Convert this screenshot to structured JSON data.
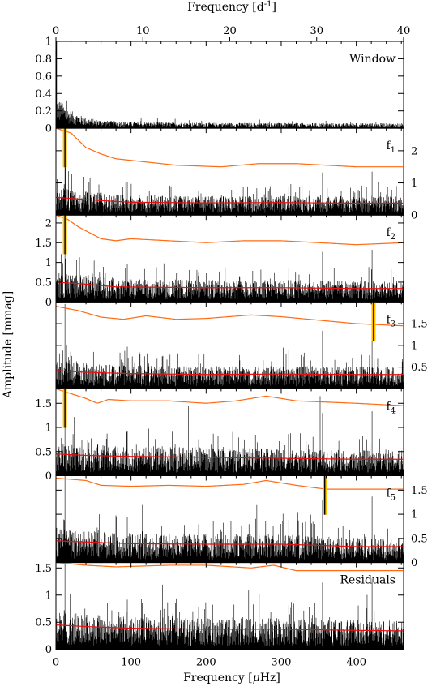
{
  "chart_data": {
    "type": "line",
    "top_axis": {
      "label_prefix": "Frequency [d",
      "label_sup": "-1",
      "label_suffix": "]",
      "range": [
        0,
        40
      ],
      "ticks": [
        "0",
        "10",
        "20",
        "30",
        "40"
      ]
    },
    "bottom_axis": {
      "label_prefix": "Frequency [",
      "label_mu": "μ",
      "label_suffix": "Hz]",
      "range": [
        0,
        463
      ],
      "ticks": [
        "0",
        "100",
        "200",
        "300",
        "400"
      ]
    },
    "ylabel": "Amplitude [mmag]",
    "colors": {
      "spectrum": "#000000",
      "threshold": "#ff6a13",
      "noise": "#e8100f",
      "highlight": "#ffbe00"
    },
    "panels": [
      {
        "name": "Window",
        "label": "Window",
        "sub": "",
        "ylim": [
          0,
          1.0
        ],
        "yaxis": "left",
        "yticks": [
          "0",
          "0.2",
          "0.4",
          "0.6",
          "0.8",
          "1"
        ],
        "noise": [],
        "threshold": [],
        "highlight_freq": null
      },
      {
        "name": "f1",
        "label": "f",
        "sub": "1",
        "ylim": [
          0,
          2.7
        ],
        "yaxis": "right",
        "yticks": [
          "0",
          "1",
          "2"
        ],
        "noise": [
          [
            0,
            0.55
          ],
          [
            30,
            0.5
          ],
          [
            60,
            0.45
          ],
          [
            100,
            0.4
          ],
          [
            200,
            0.38
          ],
          [
            300,
            0.39
          ],
          [
            400,
            0.37
          ],
          [
            463,
            0.37
          ]
        ],
        "threshold": [
          [
            0,
            2.7
          ],
          [
            20,
            2.55
          ],
          [
            40,
            2.1
          ],
          [
            60,
            1.9
          ],
          [
            80,
            1.75
          ],
          [
            120,
            1.65
          ],
          [
            160,
            1.55
          ],
          [
            220,
            1.5
          ],
          [
            270,
            1.6
          ],
          [
            320,
            1.6
          ],
          [
            360,
            1.55
          ],
          [
            400,
            1.5
          ],
          [
            463,
            1.5
          ]
        ],
        "highlight_freq": 12
      },
      {
        "name": "f2",
        "label": "f",
        "sub": "2",
        "ylim": [
          0,
          2.2
        ],
        "yaxis": "left",
        "yticks": [
          "0",
          "0.5",
          "1",
          "1.5",
          "2"
        ],
        "noise": [
          [
            0,
            0.5
          ],
          [
            40,
            0.45
          ],
          [
            80,
            0.38
          ],
          [
            200,
            0.36
          ],
          [
            300,
            0.36
          ],
          [
            400,
            0.34
          ],
          [
            463,
            0.34
          ]
        ],
        "threshold": [
          [
            0,
            2.2
          ],
          [
            15,
            2.1
          ],
          [
            30,
            1.9
          ],
          [
            60,
            1.6
          ],
          [
            80,
            1.55
          ],
          [
            100,
            1.6
          ],
          [
            150,
            1.55
          ],
          [
            200,
            1.5
          ],
          [
            250,
            1.55
          ],
          [
            300,
            1.55
          ],
          [
            350,
            1.5
          ],
          [
            400,
            1.45
          ],
          [
            463,
            1.5
          ]
        ],
        "highlight_freq": 12
      },
      {
        "name": "f3",
        "label": "f",
        "sub": "3",
        "ylim": [
          0,
          2.0
        ],
        "yaxis": "right",
        "yticks": [
          "0.5",
          "1",
          "1.5"
        ],
        "noise": [
          [
            0,
            0.42
          ],
          [
            40,
            0.38
          ],
          [
            100,
            0.35
          ],
          [
            200,
            0.33
          ],
          [
            300,
            0.34
          ],
          [
            400,
            0.33
          ],
          [
            463,
            0.33
          ]
        ],
        "threshold": [
          [
            0,
            1.9
          ],
          [
            30,
            1.8
          ],
          [
            60,
            1.65
          ],
          [
            90,
            1.6
          ],
          [
            120,
            1.68
          ],
          [
            160,
            1.6
          ],
          [
            200,
            1.62
          ],
          [
            260,
            1.7
          ],
          [
            300,
            1.66
          ],
          [
            350,
            1.58
          ],
          [
            400,
            1.5
          ],
          [
            463,
            1.45
          ]
        ],
        "highlight_freq": 423
      },
      {
        "name": "f4",
        "label": "f",
        "sub": "4",
        "ylim": [
          0,
          1.8
        ],
        "yaxis": "left",
        "yticks": [
          "0",
          "0.5",
          "1",
          "1.5"
        ],
        "noise": [
          [
            0,
            0.45
          ],
          [
            40,
            0.42
          ],
          [
            100,
            0.4
          ],
          [
            200,
            0.38
          ],
          [
            300,
            0.36
          ],
          [
            400,
            0.34
          ],
          [
            463,
            0.34
          ]
        ],
        "threshold": [
          [
            0,
            1.8
          ],
          [
            20,
            1.7
          ],
          [
            40,
            1.6
          ],
          [
            55,
            1.5
          ],
          [
            70,
            1.58
          ],
          [
            100,
            1.55
          ],
          [
            150,
            1.55
          ],
          [
            200,
            1.5
          ],
          [
            240,
            1.55
          ],
          [
            280,
            1.65
          ],
          [
            320,
            1.55
          ],
          [
            400,
            1.5
          ],
          [
            463,
            1.45
          ]
        ],
        "highlight_freq": 12
      },
      {
        "name": "f5",
        "label": "f",
        "sub": "5",
        "ylim": [
          0,
          1.8
        ],
        "yaxis": "right",
        "yticks": [
          "0",
          "0.5",
          "1",
          "1.5"
        ],
        "noise": [
          [
            0,
            0.45
          ],
          [
            50,
            0.42
          ],
          [
            100,
            0.39
          ],
          [
            200,
            0.38
          ],
          [
            300,
            0.38
          ],
          [
            400,
            0.33
          ],
          [
            463,
            0.33
          ]
        ],
        "threshold": [
          [
            0,
            1.75
          ],
          [
            40,
            1.7
          ],
          [
            60,
            1.6
          ],
          [
            100,
            1.58
          ],
          [
            150,
            1.6
          ],
          [
            200,
            1.58
          ],
          [
            250,
            1.62
          ],
          [
            280,
            1.7
          ],
          [
            320,
            1.6
          ],
          [
            360,
            1.52
          ],
          [
            400,
            1.52
          ],
          [
            463,
            1.52
          ]
        ],
        "highlight_freq": 358
      },
      {
        "name": "Residuals",
        "label": "Residuals",
        "sub": "",
        "ylim": [
          0,
          1.6
        ],
        "yaxis": "left",
        "yticks": [
          "0",
          "0.5",
          "1",
          "1.5"
        ],
        "noise": [
          [
            0,
            0.45
          ],
          [
            40,
            0.42
          ],
          [
            100,
            0.39
          ],
          [
            200,
            0.37
          ],
          [
            300,
            0.37
          ],
          [
            400,
            0.35
          ],
          [
            463,
            0.34
          ]
        ],
        "threshold": [
          [
            0,
            1.6
          ],
          [
            40,
            1.55
          ],
          [
            80,
            1.52
          ],
          [
            150,
            1.55
          ],
          [
            200,
            1.55
          ],
          [
            260,
            1.5
          ],
          [
            290,
            1.55
          ],
          [
            320,
            1.45
          ],
          [
            400,
            1.45
          ],
          [
            463,
            1.45
          ]
        ],
        "highlight_freq": null
      }
    ]
  }
}
